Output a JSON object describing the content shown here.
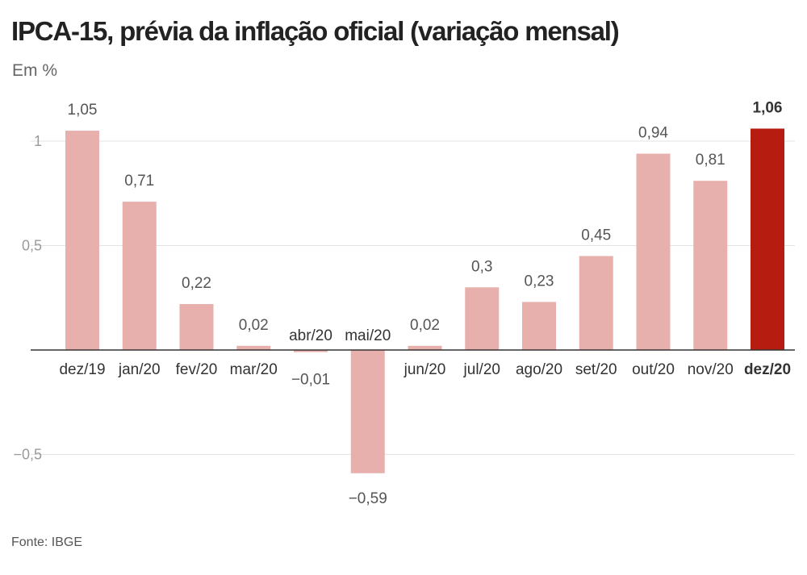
{
  "title": "IPCA-15, prévia da inflação oficial (variação mensal)",
  "unit_label": "Em %",
  "source": "Fonte: IBGE",
  "colors": {
    "bar": "#e8b0ad",
    "highlight": "#b71c10"
  },
  "chart_data": {
    "type": "bar",
    "title": "IPCA-15, prévia da inflação oficial (variação mensal)",
    "ylabel": "Em %",
    "categories": [
      "dez/19",
      "jan/20",
      "fev/20",
      "mar/20",
      "abr/20",
      "mai/20",
      "jun/20",
      "jul/20",
      "ago/20",
      "set/20",
      "out/20",
      "nov/20",
      "dez/20"
    ],
    "values": [
      1.05,
      0.71,
      0.22,
      0.02,
      -0.01,
      -0.59,
      0.02,
      0.3,
      0.23,
      0.45,
      0.94,
      0.81,
      1.06
    ],
    "value_labels": [
      "1,05",
      "0,71",
      "0,22",
      "0,02",
      "−0,01",
      "−0,59",
      "0,02",
      "0,3",
      "0,23",
      "0,45",
      "0,94",
      "0,81",
      "1,06"
    ],
    "highlight_index": 12,
    "ylim": [
      -0.6,
      1.1
    ],
    "yticks": [
      {
        "value": 1,
        "label": "1"
      },
      {
        "value": 0.5,
        "label": "0,5"
      },
      {
        "value": -0.5,
        "label": "−0,5"
      }
    ],
    "grid": true,
    "legend": "none"
  }
}
